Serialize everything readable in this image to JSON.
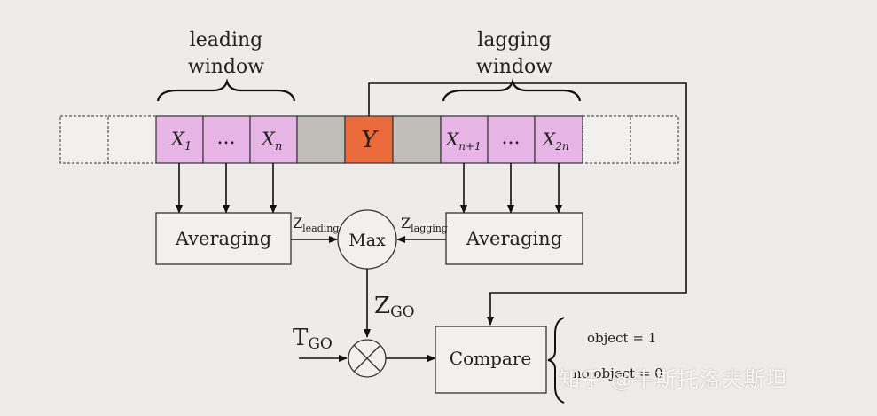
{
  "labels": {
    "leading_window_line1": "leading",
    "leading_window_line2": "window",
    "lagging_window_line1": "lagging",
    "lagging_window_line2": "window",
    "cell_x1_main": "X",
    "cell_x1_sub": "1",
    "cell_dots_left": "...",
    "cell_xn_main": "X",
    "cell_xn_sub": "n",
    "cell_y": "Y",
    "cell_xn1_main": "X",
    "cell_xn1_sub": "n+1",
    "cell_dots_right": "...",
    "cell_x2n_main": "X",
    "cell_x2n_sub": "2n",
    "averaging_left": "Averaging",
    "averaging_right": "Averaging",
    "z_leading_main": "Z",
    "z_leading_sub": "leading",
    "z_lagging_main": "Z",
    "z_lagging_sub": "lagging",
    "max": "Max",
    "z_go_main": "Z",
    "z_go_sub": "GO",
    "t_go_main": "T",
    "t_go_sub": "GO",
    "compare": "Compare",
    "output_object": "object = 1",
    "output_no_object": "no object = 0"
  },
  "watermark": "知乎 @牛斯托洛夫斯坦",
  "colors": {
    "background": "#eeecea",
    "window_cell": "#e8b6e6",
    "guard_cell": "#c0bdb8",
    "cut_cell": "#ec6b3c",
    "line": "#111111"
  }
}
